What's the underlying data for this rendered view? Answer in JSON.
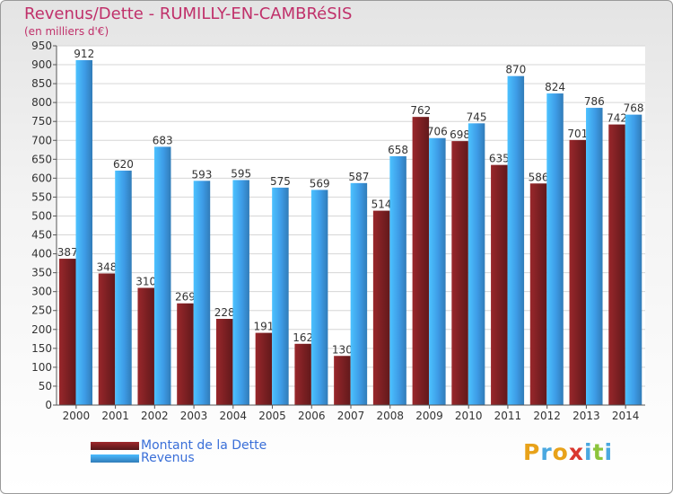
{
  "chart_data": {
    "type": "bar",
    "title": "Revenus/Dette - RUMILLY-EN-CAMBRéSIS",
    "subtitle": "(en milliers d'€)",
    "categories": [
      "2000",
      "2001",
      "2002",
      "2003",
      "2004",
      "2005",
      "2006",
      "2007",
      "2008",
      "2009",
      "2010",
      "2011",
      "2012",
      "2013",
      "2014"
    ],
    "series": [
      {
        "name": "Montant de la Dette",
        "color": "#7a1f22",
        "values": [
          387,
          348,
          310,
          269,
          228,
          191,
          162,
          130,
          514,
          762,
          698,
          635,
          586,
          701,
          742
        ]
      },
      {
        "name": "Revenus",
        "color": "#3d9be6",
        "values": [
          912,
          620,
          683,
          593,
          595,
          575,
          569,
          587,
          658,
          706,
          745,
          870,
          824,
          786,
          768
        ]
      }
    ],
    "ylim": [
      0,
      950
    ],
    "yticks": [
      0,
      50,
      100,
      150,
      200,
      250,
      300,
      350,
      400,
      450,
      500,
      550,
      600,
      650,
      700,
      750,
      800,
      850,
      900,
      950
    ],
    "grid": true,
    "legend": "bottom-left"
  },
  "logo": {
    "letters": [
      "P",
      "r",
      "o",
      "x",
      "i",
      "t",
      "i"
    ],
    "colors": [
      "#e8a21a",
      "#4aa8e0",
      "#e8a21a",
      "#d9372e",
      "#4aa8e0",
      "#8cc43c",
      "#4aa8e0"
    ]
  }
}
